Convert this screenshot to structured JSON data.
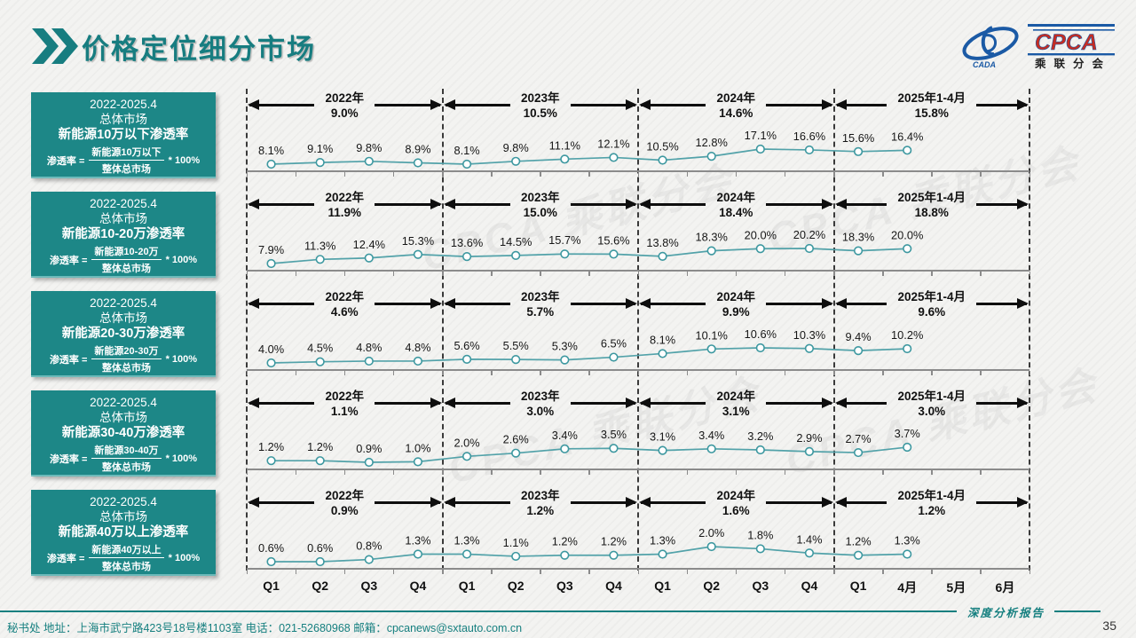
{
  "header": {
    "title": "价格定位细分市场"
  },
  "logo": {
    "cpca": "CPCA",
    "sub": "乘联分会",
    "cada": "CADA"
  },
  "watermark": "CPCA 乘联分会",
  "x_labels": [
    "Q1",
    "Q2",
    "Q3",
    "Q4",
    "Q1",
    "Q2",
    "Q3",
    "Q4",
    "Q1",
    "Q2",
    "Q3",
    "Q4",
    "Q1",
    "4月",
    "5月",
    "6月"
  ],
  "chart_data": [
    {
      "type": "line",
      "panel": {
        "period": "2022-2025.4",
        "market": "总体市场",
        "title": "新能源10万以下渗透率",
        "formula_lhs": "渗透率 =",
        "numerator": "新能源10万以下",
        "denominator": "整体总市场",
        "multiplier": "* 100%"
      },
      "segments": [
        {
          "year": "2022年",
          "avg": "9.0%"
        },
        {
          "year": "2023年",
          "avg": "10.5%"
        },
        {
          "year": "2024年",
          "avg": "14.6%"
        },
        {
          "year": "2025年1-4月",
          "avg": "15.8%"
        }
      ],
      "categories": [
        "Q1",
        "Q2",
        "Q3",
        "Q4",
        "Q1",
        "Q2",
        "Q3",
        "Q4",
        "Q1",
        "Q2",
        "Q3",
        "Q4",
        "Q1",
        "4月"
      ],
      "values": [
        8.1,
        9.1,
        9.8,
        8.9,
        8.1,
        9.8,
        11.1,
        12.1,
        10.5,
        12.8,
        17.1,
        16.6,
        15.6,
        16.4
      ],
      "labels": [
        "8.1%",
        "9.1%",
        "9.8%",
        "8.9%",
        "8.1%",
        "9.8%",
        "11.1%",
        "12.1%",
        "10.5%",
        "12.8%",
        "17.1%",
        "16.6%",
        "15.6%",
        "16.4%"
      ]
    },
    {
      "type": "line",
      "panel": {
        "period": "2022-2025.4",
        "market": "总体市场",
        "title": "新能源10-20万渗透率",
        "formula_lhs": "渗透率 =",
        "numerator": "新能源10-20万",
        "denominator": "整体总市场",
        "multiplier": "* 100%"
      },
      "segments": [
        {
          "year": "2022年",
          "avg": "11.9%"
        },
        {
          "year": "2023年",
          "avg": "15.0%"
        },
        {
          "year": "2024年",
          "avg": "18.4%"
        },
        {
          "year": "2025年1-4月",
          "avg": "18.8%"
        }
      ],
      "categories": [
        "Q1",
        "Q2",
        "Q3",
        "Q4",
        "Q1",
        "Q2",
        "Q3",
        "Q4",
        "Q1",
        "Q2",
        "Q3",
        "Q4",
        "Q1",
        "4月"
      ],
      "values": [
        7.9,
        11.3,
        12.4,
        15.3,
        13.6,
        14.5,
        15.7,
        15.6,
        13.8,
        18.3,
        20.0,
        20.2,
        18.3,
        20.0
      ],
      "labels": [
        "7.9%",
        "11.3%",
        "12.4%",
        "15.3%",
        "13.6%",
        "14.5%",
        "15.7%",
        "15.6%",
        "13.8%",
        "18.3%",
        "20.0%",
        "20.2%",
        "18.3%",
        "20.0%"
      ]
    },
    {
      "type": "line",
      "panel": {
        "period": "2022-2025.4",
        "market": "总体市场",
        "title": "新能源20-30万渗透率",
        "formula_lhs": "渗透率 =",
        "numerator": "新能源20-30万",
        "denominator": "整体总市场",
        "multiplier": "* 100%"
      },
      "segments": [
        {
          "year": "2022年",
          "avg": "4.6%"
        },
        {
          "year": "2023年",
          "avg": "5.7%"
        },
        {
          "year": "2024年",
          "avg": "9.9%"
        },
        {
          "year": "2025年1-4月",
          "avg": "9.6%"
        }
      ],
      "categories": [
        "Q1",
        "Q2",
        "Q3",
        "Q4",
        "Q1",
        "Q2",
        "Q3",
        "Q4",
        "Q1",
        "Q2",
        "Q3",
        "Q4",
        "Q1",
        "4月"
      ],
      "values": [
        4.0,
        4.5,
        4.8,
        4.8,
        5.6,
        5.5,
        5.3,
        6.5,
        8.1,
        10.1,
        10.6,
        10.3,
        9.4,
        10.2
      ],
      "labels": [
        "4.0%",
        "4.5%",
        "4.8%",
        "4.8%",
        "5.6%",
        "5.5%",
        "5.3%",
        "6.5%",
        "8.1%",
        "10.1%",
        "10.6%",
        "10.3%",
        "9.4%",
        "10.2%"
      ]
    },
    {
      "type": "line",
      "panel": {
        "period": "2022-2025.4",
        "market": "总体市场",
        "title": "新能源30-40万渗透率",
        "formula_lhs": "渗透率 =",
        "numerator": "新能源30-40万",
        "denominator": "整体总市场",
        "multiplier": "* 100%"
      },
      "segments": [
        {
          "year": "2022年",
          "avg": "1.1%"
        },
        {
          "year": "2023年",
          "avg": "3.0%"
        },
        {
          "year": "2024年",
          "avg": "3.1%"
        },
        {
          "year": "2025年1-4月",
          "avg": "3.0%"
        }
      ],
      "categories": [
        "Q1",
        "Q2",
        "Q3",
        "Q4",
        "Q1",
        "Q2",
        "Q3",
        "Q4",
        "Q1",
        "Q2",
        "Q3",
        "Q4",
        "Q1",
        "4月"
      ],
      "values": [
        1.2,
        1.2,
        0.9,
        1.0,
        2.0,
        2.6,
        3.4,
        3.5,
        3.1,
        3.4,
        3.2,
        2.9,
        2.7,
        3.7
      ],
      "labels": [
        "1.2%",
        "1.2%",
        "0.9%",
        "1.0%",
        "2.0%",
        "2.6%",
        "3.4%",
        "3.5%",
        "3.1%",
        "3.4%",
        "3.2%",
        "2.9%",
        "2.7%",
        "3.7%"
      ]
    },
    {
      "type": "line",
      "panel": {
        "period": "2022-2025.4",
        "market": "总体市场",
        "title": "新能源40万以上渗透率",
        "formula_lhs": "渗透率 =",
        "numerator": "新能源40万以上",
        "denominator": "整体总市场",
        "multiplier": "* 100%"
      },
      "segments": [
        {
          "year": "2022年",
          "avg": "0.9%"
        },
        {
          "year": "2023年",
          "avg": "1.2%"
        },
        {
          "year": "2024年",
          "avg": "1.6%"
        },
        {
          "year": "2025年1-4月",
          "avg": "1.2%"
        }
      ],
      "categories": [
        "Q1",
        "Q2",
        "Q3",
        "Q4",
        "Q1",
        "Q2",
        "Q3",
        "Q4",
        "Q1",
        "Q2",
        "Q3",
        "Q4",
        "Q1",
        "4月"
      ],
      "values": [
        0.6,
        0.6,
        0.8,
        1.3,
        1.3,
        1.1,
        1.2,
        1.2,
        1.3,
        2.0,
        1.8,
        1.4,
        1.2,
        1.3
      ],
      "labels": [
        "0.6%",
        "0.6%",
        "0.8%",
        "1.3%",
        "1.3%",
        "1.1%",
        "1.2%",
        "1.2%",
        "1.3%",
        "2.0%",
        "1.8%",
        "1.4%",
        "1.2%",
        "1.3%"
      ]
    }
  ],
  "footer": {
    "left": "秘书处   地址：上海市武宁路423号18号楼1103室  电话：021-52680968   邮箱：cpcanews@sxtauto.com.cn",
    "report_label": "深度分析报告",
    "page": "35"
  }
}
